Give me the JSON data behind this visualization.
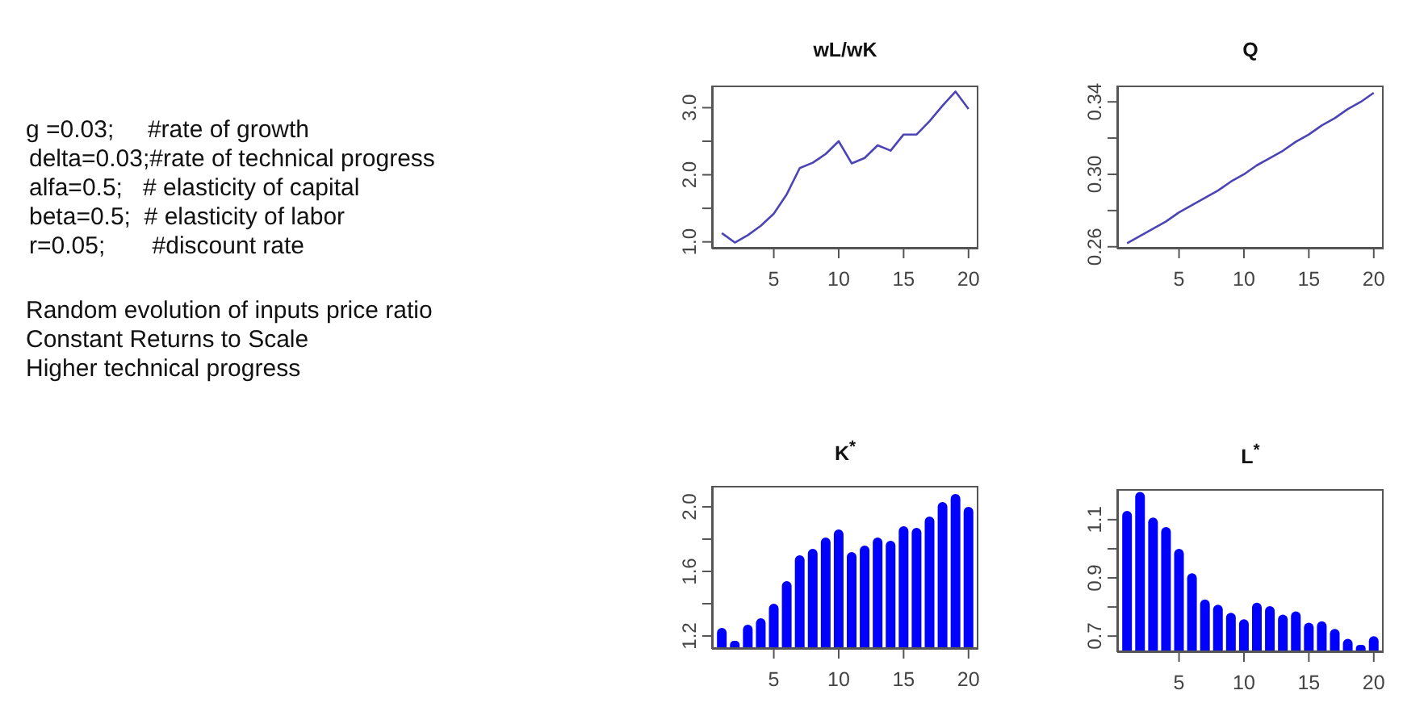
{
  "chart_data": [
    {
      "type": "other",
      "annotations": [
        "g =0.03;     #rate of growth",
        "delta=0.03;#rate of technical progress",
        "alfa=0.5;   # elasticity of capital",
        "beta=0.5;  # elasticity of labor",
        "r=0.05;       #discount rate",
        "Random evolution of inputs price ratio",
        "Constant Returns to Scale",
        "Higher technical progress"
      ]
    },
    {
      "type": "line",
      "title": "wL/wK",
      "x": [
        1,
        2,
        3,
        4,
        5,
        6,
        7,
        8,
        9,
        10,
        11,
        12,
        13,
        14,
        15,
        16,
        17,
        18,
        19,
        20
      ],
      "series": [
        {
          "color": "#4b44b4",
          "values": [
            1.13,
            0.99,
            1.1,
            1.24,
            1.42,
            1.71,
            2.1,
            2.18,
            2.31,
            2.5,
            2.17,
            2.25,
            2.44,
            2.36,
            2.6,
            2.6,
            2.8,
            3.03,
            3.24,
            2.98
          ]
        }
      ],
      "xlim": [
        0.24,
        20.76
      ],
      "xticks": [
        5,
        10,
        15,
        20
      ],
      "ylim": [
        0.9,
        3.33
      ],
      "yticks": [
        {
          "value": 1,
          "label": "1.0"
        },
        {
          "value": 1.5,
          "label": null
        },
        {
          "value": 2,
          "label": "2.0"
        },
        {
          "value": 2.5,
          "label": null
        },
        {
          "value": 3,
          "label": "3.0"
        }
      ]
    },
    {
      "type": "line",
      "title": "Q",
      "x": [
        1,
        2,
        3,
        4,
        5,
        6,
        7,
        8,
        9,
        10,
        11,
        12,
        13,
        14,
        15,
        16,
        17,
        18,
        19,
        20
      ],
      "series": [
        {
          "color": "#4b44b4",
          "values": [
            0.262,
            0.266,
            0.27,
            0.274,
            0.279,
            0.283,
            0.287,
            0.291,
            0.296,
            0.3,
            0.305,
            0.309,
            0.313,
            0.318,
            0.322,
            0.327,
            0.331,
            0.336,
            0.34,
            0.345
          ]
        }
      ],
      "xlim": [
        0.24,
        20.76
      ],
      "xticks": [
        5,
        10,
        15,
        20
      ],
      "ylim": [
        0.259,
        0.349
      ],
      "yticks": [
        {
          "value": 0.26,
          "label": "0.26"
        },
        {
          "value": 0.28,
          "label": null
        },
        {
          "value": 0.3,
          "label": "0.30"
        },
        {
          "value": 0.32,
          "label": null
        },
        {
          "value": 0.34,
          "label": "0.34"
        }
      ]
    },
    {
      "type": "bar",
      "title": "K$^{*}$",
      "x": [
        1,
        2,
        3,
        4,
        5,
        6,
        7,
        8,
        9,
        10,
        11,
        12,
        13,
        14,
        15,
        16,
        17,
        18,
        19,
        20
      ],
      "series": [
        {
          "color": "#0000ff",
          "values": [
            1.25,
            1.17,
            1.27,
            1.31,
            1.4,
            1.54,
            1.7,
            1.74,
            1.81,
            1.86,
            1.72,
            1.76,
            1.81,
            1.79,
            1.88,
            1.87,
            1.94,
            2.03,
            2.08,
            2.0
          ]
        }
      ],
      "xlim": [
        0.24,
        20.76
      ],
      "xticks": [
        5,
        10,
        15,
        20
      ],
      "ylim": [
        1.12,
        2.13
      ],
      "yticks": [
        {
          "value": 1.2,
          "label": "1.2"
        },
        {
          "value": 1.4,
          "label": null
        },
        {
          "value": 1.6,
          "label": "1.6"
        },
        {
          "value": 1.8,
          "label": null
        },
        {
          "value": 2,
          "label": "2.0"
        }
      ]
    },
    {
      "type": "bar",
      "title": "L$^{*}$",
      "x": [
        1,
        2,
        3,
        4,
        5,
        6,
        7,
        8,
        9,
        10,
        11,
        12,
        13,
        14,
        15,
        16,
        17,
        18,
        19,
        20
      ],
      "series": [
        {
          "color": "#0000ff",
          "values": [
            1.13,
            1.195,
            1.107,
            1.075,
            1.0,
            0.916,
            0.826,
            0.808,
            0.78,
            0.758,
            0.815,
            0.803,
            0.774,
            0.785,
            0.746,
            0.751,
            0.725,
            0.691,
            0.67,
            0.7
          ]
        }
      ],
      "xlim": [
        0.24,
        20.76
      ],
      "xticks": [
        5,
        10,
        15,
        20
      ],
      "ylim": [
        0.645,
        1.205
      ],
      "yticks": [
        {
          "value": 0.7,
          "label": "0.7"
        },
        {
          "value": 0.8,
          "label": null
        },
        {
          "value": 0.9,
          "label": "0.9"
        },
        {
          "value": 1.0,
          "label": null
        },
        {
          "value": 1.1,
          "label": "1.1"
        }
      ]
    }
  ]
}
